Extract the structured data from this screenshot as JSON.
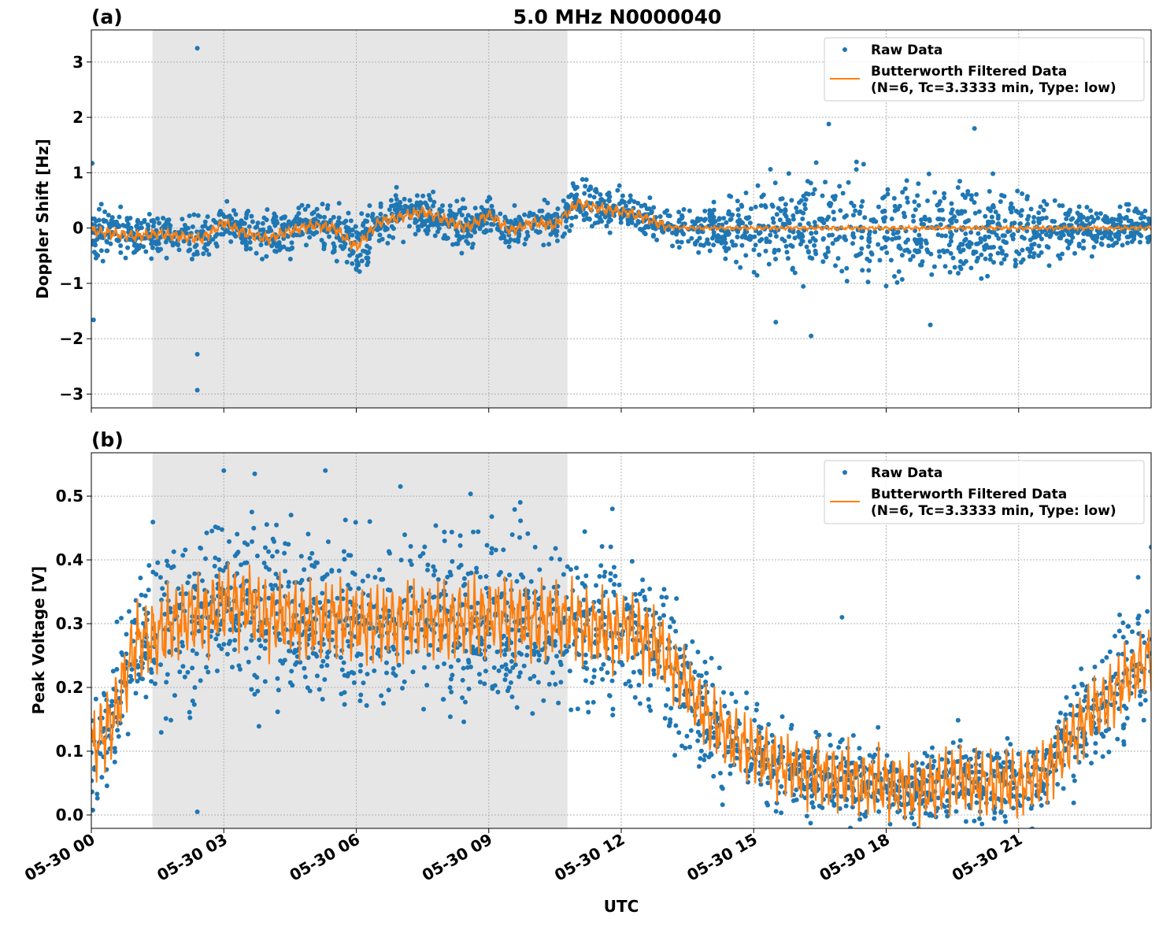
{
  "chart_data": [
    {
      "type": "scatter",
      "panel_label": "(a)",
      "title": "5.0 MHz N0000040",
      "xlabel": "",
      "ylabel": "Doppler Shift [Hz]",
      "xlim": [
        "05-30 00:00",
        "05-31 00:00"
      ],
      "ylim": [
        -3.25,
        3.58
      ],
      "xticks": [
        "05-30 00",
        "05-30 03",
        "05-30 06",
        "05-30 09",
        "05-30 12",
        "05-30 15",
        "05-30 18",
        "05-30 21"
      ],
      "yticks": [
        "−3",
        "−2",
        "−1",
        "0",
        "1",
        "2",
        "3"
      ],
      "ytick_values": [
        -3,
        -2,
        -1,
        0,
        1,
        2,
        3
      ],
      "grid": true,
      "shaded_region": {
        "start": "05-30 01:23",
        "end": "05-30 10:47",
        "color": "#e6e6e6"
      },
      "legend": {
        "placement": "top-right",
        "entries": [
          "Raw Data",
          "Butterworth Filtered Data\n(N=6, Tc=3.3333 min, Type: low)"
        ]
      },
      "legend_line1": "Butterworth Filtered Data",
      "legend_line2": "(N=6, Tc=3.3333 min, Type: low)",
      "series": [
        {
          "name": "Raw Data",
          "color": "#1f77b4",
          "marker": "dot",
          "hours": [
            0,
            1,
            2,
            3,
            4,
            5,
            6,
            7,
            8,
            9,
            10,
            11,
            12,
            13,
            14,
            15,
            16,
            17,
            18,
            19,
            20,
            21,
            22,
            23,
            24
          ],
          "center": [
            -0.1,
            -0.15,
            -0.15,
            0.05,
            -0.15,
            0.05,
            -0.3,
            0.15,
            0.2,
            0.15,
            0.05,
            0.35,
            0.3,
            0.05,
            0.0,
            0.0,
            0.0,
            0.0,
            0.0,
            0.0,
            0.0,
            0.0,
            0.0,
            0.0,
            0.0
          ],
          "spread": [
            0.5,
            0.4,
            0.45,
            0.4,
            0.45,
            0.4,
            0.5,
            0.4,
            0.4,
            0.4,
            0.35,
            0.45,
            0.35,
            0.35,
            0.45,
            0.8,
            0.9,
            0.9,
            0.9,
            0.9,
            0.9,
            0.8,
            0.5,
            0.4,
            0.4
          ],
          "outliers": [
            [
              2.4,
              3.25
            ],
            [
              2.4,
              -2.28
            ],
            [
              2.4,
              -2.93
            ],
            [
              0.02,
              1.17
            ],
            [
              0.05,
              -1.66
            ],
            [
              16.7,
              1.88
            ],
            [
              15.5,
              -1.7
            ],
            [
              16.3,
              -1.95
            ],
            [
              20.0,
              1.8
            ],
            [
              19.0,
              -1.75
            ]
          ]
        },
        {
          "name": "Butterworth Filtered Data (N=6, Tc=3.3333 min, Type: low)",
          "color": "#ff7f0e",
          "marker": "line",
          "hours": [
            0,
            0.5,
            1,
            1.5,
            2,
            2.5,
            3,
            3.5,
            4,
            4.5,
            5,
            5.5,
            6,
            6.5,
            7,
            7.5,
            8,
            8.5,
            9,
            9.5,
            10,
            10.5,
            11,
            11.5,
            12,
            12.5,
            13,
            13.5,
            14,
            15,
            16,
            17,
            18,
            19,
            20,
            21,
            22,
            23,
            24
          ],
          "values": [
            -0.05,
            -0.1,
            -0.15,
            -0.1,
            -0.15,
            -0.2,
            0.1,
            -0.1,
            -0.2,
            -0.05,
            0.05,
            0.0,
            -0.35,
            0.1,
            0.2,
            0.3,
            0.15,
            0.0,
            0.25,
            -0.05,
            0.1,
            0.05,
            0.45,
            0.35,
            0.3,
            0.2,
            0.03,
            0.0,
            0.0,
            0.0,
            0.0,
            0.0,
            0.0,
            0.0,
            0.0,
            0.0,
            0.0,
            0.0,
            0.0
          ]
        }
      ]
    },
    {
      "type": "scatter",
      "panel_label": "(b)",
      "title": "",
      "xlabel": "UTC",
      "ylabel": "Peak Voltage [V]",
      "xlim": [
        "05-30 00:00",
        "05-31 00:00"
      ],
      "ylim": [
        -0.021,
        0.568
      ],
      "xticks": [
        "05-30 00",
        "05-30 03",
        "05-30 06",
        "05-30 09",
        "05-30 12",
        "05-30 15",
        "05-30 18",
        "05-30 21"
      ],
      "yticks": [
        "0.0",
        "0.1",
        "0.2",
        "0.3",
        "0.4",
        "0.5"
      ],
      "ytick_values": [
        0,
        0.1,
        0.2,
        0.3,
        0.4,
        0.5
      ],
      "grid": true,
      "shaded_region": {
        "start": "05-30 01:23",
        "end": "05-30 10:47",
        "color": "#e6e6e6"
      },
      "legend": {
        "placement": "top-right",
        "entries": [
          "Raw Data",
          "Butterworth Filtered Data\n(N=6, Tc=3.3333 min, Type: low)"
        ]
      },
      "legend_line1": "Butterworth Filtered Data",
      "legend_line2": "(N=6, Tc=3.3333 min, Type: low)",
      "series": [
        {
          "name": "Raw Data",
          "color": "#1f77b4",
          "marker": "dot",
          "hours": [
            0,
            1,
            2,
            3,
            4,
            5,
            6,
            7,
            8,
            9,
            10,
            11,
            12,
            13,
            14,
            15,
            16,
            17,
            18,
            19,
            20,
            21,
            22,
            23,
            24
          ],
          "center": [
            0.1,
            0.27,
            0.31,
            0.33,
            0.31,
            0.3,
            0.3,
            0.3,
            0.3,
            0.31,
            0.3,
            0.3,
            0.29,
            0.25,
            0.15,
            0.1,
            0.07,
            0.06,
            0.05,
            0.04,
            0.05,
            0.05,
            0.1,
            0.18,
            0.25
          ],
          "spread": [
            0.1,
            0.13,
            0.14,
            0.14,
            0.14,
            0.14,
            0.14,
            0.14,
            0.14,
            0.14,
            0.14,
            0.13,
            0.12,
            0.12,
            0.1,
            0.08,
            0.07,
            0.07,
            0.06,
            0.06,
            0.08,
            0.06,
            0.1,
            0.12,
            0.14
          ],
          "outliers": [
            [
              2.4,
              0.005
            ],
            [
              3.0,
              0.54
            ],
            [
              5.3,
              0.54
            ],
            [
              3.7,
              0.535
            ],
            [
              7.0,
              0.515
            ],
            [
              17.0,
              0.31
            ],
            [
              11.8,
              0.48
            ],
            [
              24.0,
              0.42
            ]
          ]
        },
        {
          "name": "Butterworth Filtered Data (N=6, Tc=3.3333 min, Type: low)",
          "color": "#ff7f0e",
          "marker": "line",
          "hours": [
            0,
            0.5,
            1,
            1.5,
            2,
            2.5,
            3,
            3.5,
            4,
            4.5,
            5,
            5.5,
            6,
            6.5,
            7,
            7.5,
            8,
            8.5,
            9,
            9.5,
            10,
            10.5,
            11,
            11.5,
            12,
            12.5,
            13,
            13.5,
            14,
            14.5,
            15,
            15.5,
            16,
            16.5,
            17,
            17.5,
            18,
            18.5,
            19,
            19.5,
            20,
            20.5,
            21,
            21.5,
            22,
            22.5,
            23,
            23.5,
            24
          ],
          "values": [
            0.1,
            0.15,
            0.27,
            0.28,
            0.31,
            0.31,
            0.33,
            0.33,
            0.31,
            0.31,
            0.3,
            0.31,
            0.3,
            0.3,
            0.3,
            0.31,
            0.3,
            0.31,
            0.31,
            0.31,
            0.3,
            0.31,
            0.3,
            0.29,
            0.29,
            0.28,
            0.25,
            0.2,
            0.15,
            0.12,
            0.1,
            0.08,
            0.07,
            0.06,
            0.06,
            0.05,
            0.05,
            0.04,
            0.04,
            0.06,
            0.05,
            0.05,
            0.05,
            0.06,
            0.1,
            0.15,
            0.18,
            0.22,
            0.25
          ]
        }
      ]
    }
  ]
}
